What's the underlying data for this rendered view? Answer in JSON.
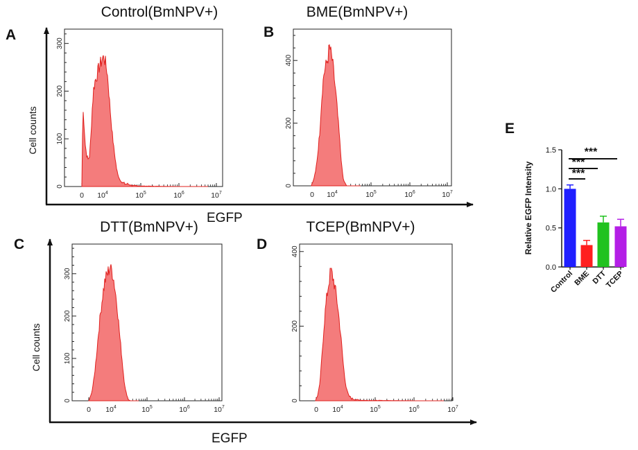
{
  "chart_data": [
    {
      "type": "area",
      "panel": "A",
      "title": "Control(BmNPV+)",
      "ylabel": "Cell counts",
      "xlabel": "EGFP",
      "xscale": "log",
      "ylim": [
        0,
        330
      ],
      "yticks": [
        "0",
        "100",
        "200",
        "300"
      ],
      "xticks": [
        "0",
        "10^4",
        "10^5",
        "10^6",
        "10^7"
      ],
      "peak": 275,
      "color": "#f47c7c"
    },
    {
      "type": "area",
      "panel": "B",
      "title": "BME(BmNPV+)",
      "ylabel": "",
      "xlabel": "",
      "xscale": "log",
      "ylim": [
        0,
        500
      ],
      "yticks": [
        "0",
        "200",
        "400"
      ],
      "xticks": [
        "0",
        "10^4",
        "10^5",
        "10^6",
        "10^7"
      ],
      "peak": 450,
      "color": "#f47c7c"
    },
    {
      "type": "area",
      "panel": "C",
      "title": "DTT(BmNPV+)",
      "ylabel": "Cell counts",
      "xlabel": "EGFP",
      "xscale": "log",
      "ylim": [
        0,
        370
      ],
      "yticks": [
        "0",
        "100",
        "200",
        "300"
      ],
      "xticks": [
        "0",
        "10^4",
        "10^5",
        "10^6",
        "10^7"
      ],
      "peak": 322,
      "color": "#f47c7c"
    },
    {
      "type": "area",
      "panel": "D",
      "title": "TCEP(BmNPV+)",
      "ylabel": "",
      "xlabel": "",
      "xscale": "log",
      "ylim": [
        0,
        420
      ],
      "yticks": [
        "0",
        "200",
        "400"
      ],
      "xticks": [
        "0",
        "10^4",
        "10^5",
        "10^6",
        "10^7"
      ],
      "peak": 355,
      "color": "#f47c7c"
    },
    {
      "type": "bar",
      "panel": "E",
      "title": "",
      "ylabel": "Relative EGFP Intensity",
      "xlabel": "",
      "ylim": [
        0,
        1.5
      ],
      "yticks": [
        "0.0",
        "0.5",
        "1.0",
        "1.5"
      ],
      "categories": [
        "Control",
        "BME",
        "DTT",
        "TCEP"
      ],
      "values": [
        1.0,
        0.28,
        0.57,
        0.52
      ],
      "errors": [
        0.05,
        0.06,
        0.08,
        0.09
      ],
      "colors": [
        "#1f1fff",
        "#ff1f1f",
        "#21c21f",
        "#b41fe6"
      ],
      "annotations": [
        "***",
        "***",
        "***"
      ]
    }
  ],
  "labels": {
    "big_xlabel_top": "EGFP",
    "big_xlabel_bottom": "EGFP"
  }
}
